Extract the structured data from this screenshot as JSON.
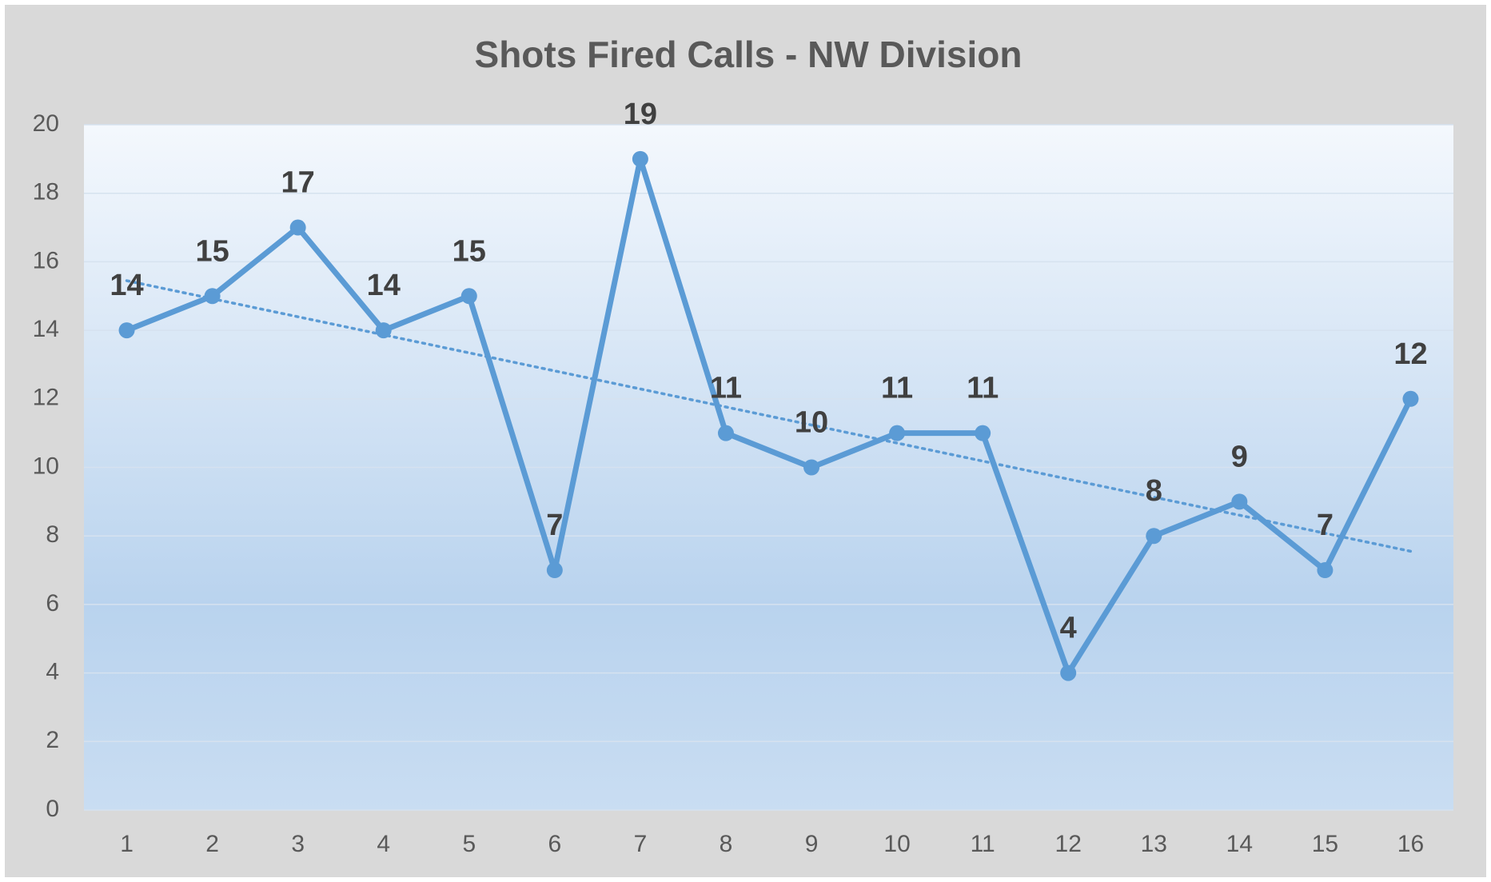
{
  "chart_data": {
    "type": "line",
    "title": "Shots Fired Calls - NW Division",
    "categories": [
      1,
      2,
      3,
      4,
      5,
      6,
      7,
      8,
      9,
      10,
      11,
      12,
      13,
      14,
      15,
      16
    ],
    "values": [
      14,
      15,
      17,
      14,
      15,
      7,
      19,
      11,
      10,
      11,
      11,
      4,
      8,
      9,
      7,
      12
    ],
    "color": "#5b9bd5",
    "ylim": [
      0,
      20
    ],
    "yticks": [
      0,
      2,
      4,
      6,
      8,
      10,
      12,
      14,
      16,
      18,
      20
    ],
    "grid": true,
    "trendline": "linear",
    "data_labels": true
  }
}
